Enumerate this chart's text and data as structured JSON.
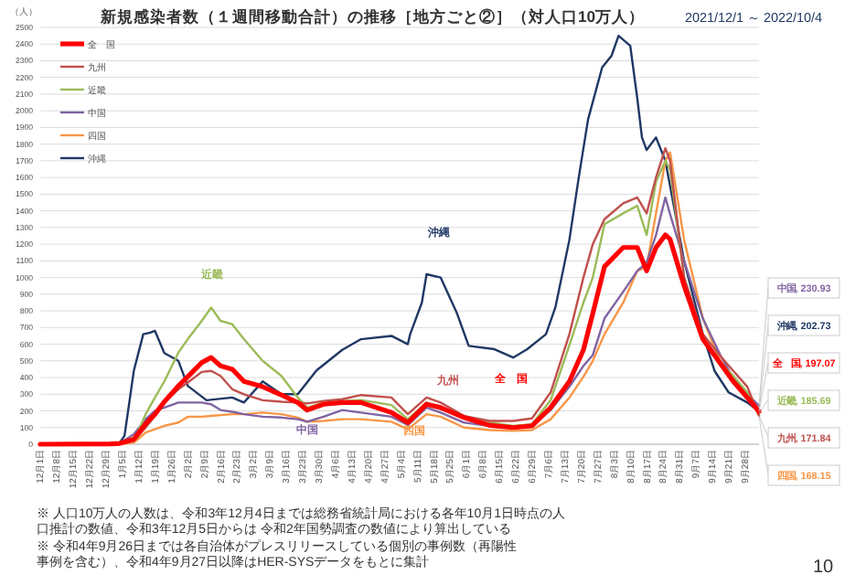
{
  "chart_data": {
    "type": "line",
    "title": "新規感染者数（１週間移動合計）の推移［地方ごと②］（対人口10万人）",
    "subtitle": "2021/12/1 ～ 2022/10/4",
    "ylabel": "（人）",
    "x": [
      "2021-12-01",
      "2021-12-31",
      "2022-01-04",
      "2022-01-10",
      "2022-01-15",
      "2022-01-19",
      "2022-01-23",
      "2022-01-29",
      "2022-02-02",
      "2022-02-08",
      "2022-02-12",
      "2022-02-16",
      "2022-02-21",
      "2022-02-26",
      "2022-03-06",
      "2022-03-14",
      "2022-03-21",
      "2022-03-25",
      "2022-04-01",
      "2022-04-09",
      "2022-04-17",
      "2022-04-30",
      "2022-05-07",
      "2022-05-15",
      "2022-05-21",
      "2022-05-31",
      "2022-06-11",
      "2022-06-21",
      "2022-06-29",
      "2022-07-07",
      "2022-07-15",
      "2022-07-21",
      "2022-07-25",
      "2022-07-30",
      "2022-08-07",
      "2022-08-13",
      "2022-08-17",
      "2022-08-21",
      "2022-08-25",
      "2022-08-27",
      "2022-09-02",
      "2022-09-10",
      "2022-09-18",
      "2022-09-23",
      "2022-09-29",
      "2022-10-04"
    ],
    "series": [
      {
        "name": "全　国",
        "color": "#ff0000",
        "values": [
          0,
          2,
          5,
          30,
          123,
          180,
          255,
          350,
          405,
          490,
          520,
          470,
          450,
          377,
          345,
          295,
          250,
          205,
          240,
          250,
          250,
          190,
          130,
          240,
          220,
          160,
          113,
          100,
          110,
          220,
          377,
          566,
          785,
          1066,
          1180,
          1180,
          1040,
          1180,
          1255,
          1230,
          950,
          630,
          475,
          377,
          280,
          197.07
        ],
        "value_labels": [
          null,
          null,
          null,
          null,
          null,
          null,
          null,
          null,
          null,
          null,
          null,
          null,
          null,
          null,
          null,
          null,
          null,
          null,
          null,
          null,
          null,
          null,
          null,
          null,
          null,
          null,
          null,
          null,
          null,
          null,
          null,
          null,
          null,
          null,
          null,
          null,
          null,
          null,
          null,
          null,
          null,
          null,
          null,
          null,
          null,
          "全　国, 197.07"
        ]
      },
      {
        "name": "九州",
        "color": "#c0504d",
        "values": [
          null,
          null,
          3,
          20,
          100,
          170,
          250,
          330,
          370,
          434,
          440,
          410,
          330,
          300,
          264,
          255,
          250,
          245,
          260,
          270,
          295,
          280,
          180,
          280,
          250,
          170,
          140,
          140,
          155,
          311,
          660,
          1000,
          1200,
          1350,
          1445,
          1480,
          1385,
          1600,
          1775,
          1700,
          1000,
          660,
          520,
          440,
          345,
          171.84
        ],
        "value_labels": [
          null,
          null,
          null,
          null,
          null,
          null,
          null,
          null,
          null,
          null,
          null,
          null,
          null,
          null,
          null,
          null,
          null,
          null,
          null,
          null,
          null,
          null,
          null,
          null,
          null,
          null,
          null,
          null,
          null,
          null,
          null,
          null,
          null,
          null,
          null,
          null,
          null,
          null,
          null,
          null,
          null,
          null,
          null,
          null,
          null,
          "九州, 171.84"
        ]
      },
      {
        "name": "近畿",
        "color": "#9bbb59",
        "values": [
          null,
          null,
          3,
          20,
          180,
          280,
          377,
          550,
          630,
          740,
          820,
          740,
          720,
          630,
          500,
          410,
          280,
          220,
          250,
          258,
          265,
          235,
          150,
          250,
          210,
          160,
          130,
          110,
          120,
          264,
          594,
          850,
          1000,
          1320,
          1385,
          1430,
          1255,
          1575,
          1700,
          1650,
          1000,
          630,
          480,
          410,
          310,
          185.69
        ],
        "value_labels": [
          null,
          null,
          null,
          null,
          null,
          null,
          null,
          null,
          null,
          null,
          null,
          null,
          null,
          null,
          null,
          null,
          null,
          null,
          null,
          null,
          null,
          null,
          null,
          null,
          null,
          null,
          null,
          null,
          null,
          null,
          null,
          null,
          null,
          null,
          null,
          null,
          null,
          null,
          null,
          null,
          null,
          null,
          null,
          null,
          null,
          "近畿, 185.69"
        ]
      },
      {
        "name": "中国",
        "color": "#8064a2",
        "values": [
          null,
          null,
          5,
          60,
          150,
          200,
          220,
          250,
          250,
          250,
          240,
          205,
          195,
          180,
          165,
          160,
          150,
          135,
          165,
          205,
          190,
          165,
          115,
          220,
          190,
          130,
          110,
          100,
          110,
          205,
          345,
          470,
          535,
          755,
          915,
          1040,
          1090,
          1255,
          1480,
          1380,
          1100,
          755,
          520,
          395,
          300,
          230.93
        ],
        "value_labels": [
          null,
          null,
          null,
          null,
          null,
          null,
          null,
          null,
          null,
          null,
          null,
          null,
          null,
          null,
          null,
          null,
          null,
          null,
          null,
          null,
          null,
          null,
          null,
          null,
          null,
          null,
          null,
          null,
          null,
          null,
          null,
          null,
          null,
          null,
          null,
          null,
          null,
          null,
          null,
          null,
          null,
          null,
          null,
          null,
          null,
          "中国, 230.93"
        ]
      },
      {
        "name": "四国",
        "color": "#f79646",
        "values": [
          null,
          null,
          1,
          10,
          70,
          90,
          110,
          130,
          165,
          165,
          170,
          175,
          180,
          180,
          190,
          180,
          160,
          135,
          140,
          150,
          150,
          135,
          90,
          180,
          165,
          100,
          85,
          80,
          85,
          150,
          280,
          405,
          500,
          660,
          850,
          1040,
          1066,
          1385,
          1700,
          1750,
          1226,
          755,
          475,
          400,
          310,
          168.15
        ],
        "value_labels": [
          null,
          null,
          null,
          null,
          null,
          null,
          null,
          null,
          null,
          null,
          null,
          null,
          null,
          null,
          null,
          null,
          null,
          null,
          null,
          null,
          null,
          null,
          null,
          null,
          null,
          null,
          null,
          null,
          null,
          null,
          null,
          null,
          null,
          null,
          null,
          null,
          null,
          null,
          null,
          null,
          null,
          null,
          null,
          null,
          null,
          "四国, 168.15"
        ]
      },
      {
        "name": "沖縄",
        "color": "#1f3864",
        "x": [
          "2022-01-04",
          "2022-01-06",
          "2022-01-10",
          "2022-01-14",
          "2022-01-17",
          "2022-01-19",
          "2022-01-23",
          "2022-01-29",
          "2022-02-02",
          "2022-02-10",
          "2022-02-21",
          "2022-02-26",
          "2022-03-06",
          "2022-03-14",
          "2022-03-21",
          "2022-03-29",
          "2022-04-09",
          "2022-04-17",
          "2022-04-30",
          "2022-05-07",
          "2022-05-08",
          "2022-05-13",
          "2022-05-15",
          "2022-05-21",
          "2022-05-28",
          "2022-06-02",
          "2022-06-13",
          "2022-06-21",
          "2022-06-27",
          "2022-07-05",
          "2022-07-09",
          "2022-07-15",
          "2022-07-19",
          "2022-07-23",
          "2022-07-29",
          "2022-08-02",
          "2022-08-05",
          "2022-08-10",
          "2022-08-13",
          "2022-08-15",
          "2022-08-17",
          "2022-08-21",
          "2022-08-25",
          "2022-09-02",
          "2022-09-10",
          "2022-09-15",
          "2022-09-21",
          "2022-09-29",
          "2022-10-03",
          "2022-10-04"
        ],
        "values": [
          10,
          50,
          443,
          660,
          670,
          680,
          547,
          500,
          350,
          264,
          280,
          250,
          377,
          300,
          300,
          443,
          566,
          630,
          650,
          600,
          660,
          850,
          1020,
          1000,
          785,
          590,
          570,
          520,
          570,
          660,
          820,
          1226,
          1600,
          1950,
          2260,
          2330,
          2450,
          2390,
          2075,
          1840,
          1765,
          1840,
          1700,
          1100,
          660,
          440,
          311,
          250,
          207,
          202.73
        ],
        "value_labels": [
          null,
          null,
          null,
          null,
          null,
          null,
          null,
          null,
          null,
          null,
          null,
          null,
          null,
          null,
          null,
          null,
          null,
          null,
          null,
          null,
          null,
          null,
          null,
          null,
          null,
          null,
          null,
          null,
          null,
          null,
          null,
          null,
          null,
          null,
          null,
          null,
          null,
          null,
          null,
          null,
          null,
          null,
          null,
          null,
          null,
          null,
          null,
          null,
          null,
          "沖縄, 202.73"
        ]
      }
    ],
    "xlim": [
      "2021-12-01",
      "2022-10-04"
    ],
    "xticks": [
      {
        "value": "2021-12-01",
        "label": "12月1日"
      },
      {
        "value": "2021-12-08",
        "label": "12月8日"
      },
      {
        "value": "2021-12-15",
        "label": "12月15日"
      },
      {
        "value": "2021-12-22",
        "label": "12月22日"
      },
      {
        "value": "2021-12-29",
        "label": "12月29日"
      },
      {
        "value": "2022-01-05",
        "label": "1月5日"
      },
      {
        "value": "2022-01-12",
        "label": "1月12日"
      },
      {
        "value": "2022-01-19",
        "label": "1月19日"
      },
      {
        "value": "2022-01-26",
        "label": "1月26日"
      },
      {
        "value": "2022-02-02",
        "label": "2月2日"
      },
      {
        "value": "2022-02-09",
        "label": "2月9日"
      },
      {
        "value": "2022-02-16",
        "label": "2月16日"
      },
      {
        "value": "2022-02-23",
        "label": "2月23日"
      },
      {
        "value": "2022-03-02",
        "label": "3月2日"
      },
      {
        "value": "2022-03-09",
        "label": "3月9日"
      },
      {
        "value": "2022-03-16",
        "label": "3月16日"
      },
      {
        "value": "2022-03-23",
        "label": "3月23日"
      },
      {
        "value": "2022-03-30",
        "label": "3月30日"
      },
      {
        "value": "2022-04-06",
        "label": "4月6日"
      },
      {
        "value": "2022-04-13",
        "label": "4月13日"
      },
      {
        "value": "2022-04-20",
        "label": "4月20日"
      },
      {
        "value": "2022-04-27",
        "label": "4月27日"
      },
      {
        "value": "2022-05-04",
        "label": "5月4日"
      },
      {
        "value": "2022-05-11",
        "label": "5月11日"
      },
      {
        "value": "2022-05-18",
        "label": "5月18日"
      },
      {
        "value": "2022-05-25",
        "label": "5月25日"
      },
      {
        "value": "2022-06-01",
        "label": "6月1日"
      },
      {
        "value": "2022-06-08",
        "label": "6月8日"
      },
      {
        "value": "2022-06-15",
        "label": "6月15日"
      },
      {
        "value": "2022-06-22",
        "label": "6月22日"
      },
      {
        "value": "2022-06-29",
        "label": "6月29日"
      },
      {
        "value": "2022-07-06",
        "label": "7月6日"
      },
      {
        "value": "2022-07-13",
        "label": "7月13日"
      },
      {
        "value": "2022-07-20",
        "label": "7月20日"
      },
      {
        "value": "2022-07-27",
        "label": "7月27日"
      },
      {
        "value": "2022-08-03",
        "label": "8月3日"
      },
      {
        "value": "2022-08-10",
        "label": "8月10日"
      },
      {
        "value": "2022-08-17",
        "label": "8月17日"
      },
      {
        "value": "2022-08-24",
        "label": "8月24日"
      },
      {
        "value": "2022-08-31",
        "label": "8月31日"
      },
      {
        "value": "2022-09-07",
        "label": "9月7日"
      },
      {
        "value": "2022-09-14",
        "label": "9月14日"
      },
      {
        "value": "2022-09-21",
        "label": "9月21日"
      },
      {
        "value": "2022-09-28",
        "label": "9月28日"
      }
    ],
    "ylim": [
      0,
      2500
    ],
    "yticks": [
      0,
      100,
      200,
      300,
      400,
      500,
      600,
      700,
      800,
      900,
      1000,
      1100,
      1200,
      1300,
      1400,
      1500,
      1600,
      1700,
      1800,
      1900,
      2000,
      2100,
      2200,
      2300,
      2400,
      2500
    ],
    "grid": "y",
    "legend": "top left",
    "annotations": [
      "近畿",
      "沖縄",
      "九州",
      "全　国",
      "中国",
      "四国",
      "※ 人口10万人の人数は、令和3年12月4日までは総務省統計局における各年10月1日時点の人口推計の数値、令和3年12月5日からは 令和2年国勢調査の数値により算出している",
      "※ 令和4年9月26日までは各自治体がプレスリリースしている個別の事例数（再陽性事例を含む）、令和4年9月27日以降はHER-SYSデータをもとに集計",
      "10"
    ]
  }
}
